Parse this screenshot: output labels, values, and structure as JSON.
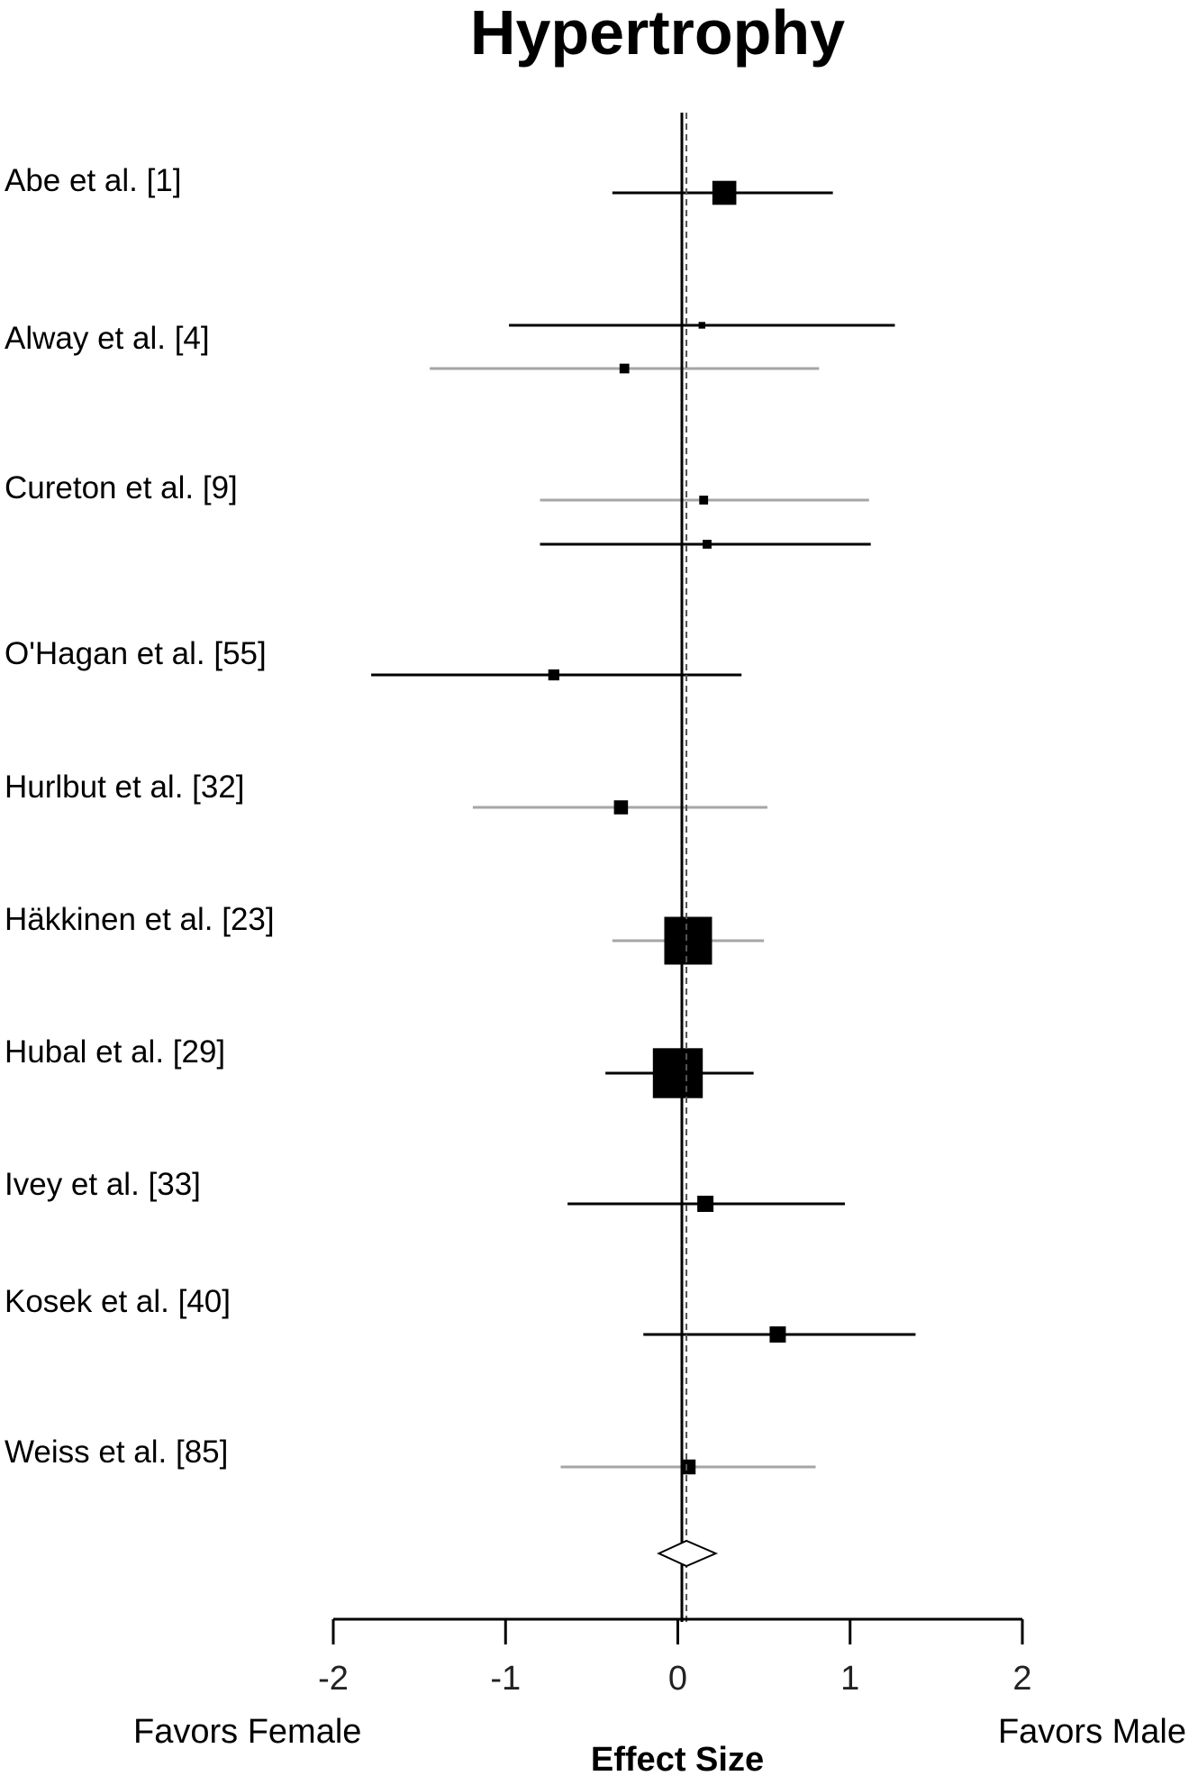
{
  "chart_data": {
    "type": "forest",
    "title": "Hypertrophy",
    "xlabel": "Effect Size",
    "left_annotation": "Favors Female",
    "right_annotation": "Favors Male",
    "xlim": [
      -2,
      2
    ],
    "xticks": [
      "-2",
      "-1",
      "0",
      "1",
      "2"
    ],
    "pooled_reference_line": 0.05,
    "studies": [
      {
        "label": "Abe et al. [1]",
        "rows": [
          {
            "est": 0.27,
            "lo": -0.38,
            "hi": 0.9,
            "weight": 0.45,
            "tone": "black"
          }
        ]
      },
      {
        "label": "Alway et al. [4]",
        "rows": [
          {
            "est": 0.14,
            "lo": -0.98,
            "hi": 1.26,
            "weight": 0.05,
            "tone": "black"
          },
          {
            "est": -0.31,
            "lo": -1.44,
            "hi": 0.82,
            "weight": 0.12,
            "tone": "gray"
          }
        ]
      },
      {
        "label": "Cureton et al. [9]",
        "rows": [
          {
            "est": 0.15,
            "lo": -0.8,
            "hi": 1.11,
            "weight": 0.1,
            "tone": "gray"
          },
          {
            "est": 0.17,
            "lo": -0.8,
            "hi": 1.12,
            "weight": 0.1,
            "tone": "black"
          }
        ]
      },
      {
        "label": "O'Hagan et al. [55]",
        "rows": [
          {
            "est": -0.72,
            "lo": -1.78,
            "hi": 0.37,
            "weight": 0.15,
            "tone": "black"
          }
        ]
      },
      {
        "label": "Hurlbut et al. [32]",
        "rows": [
          {
            "est": -0.33,
            "lo": -1.19,
            "hi": 0.52,
            "weight": 0.22,
            "tone": "gray"
          }
        ]
      },
      {
        "label": "Häkkinen et al. [23]",
        "rows": [
          {
            "est": 0.06,
            "lo": -0.38,
            "hi": 0.5,
            "weight": 1.0,
            "tone": "gray"
          }
        ]
      },
      {
        "label": "Hubal et al. [29]",
        "rows": [
          {
            "est": 0.0,
            "lo": -0.42,
            "hi": 0.44,
            "weight": 1.05,
            "tone": "black"
          }
        ]
      },
      {
        "label": "Ivey et al. [33]",
        "rows": [
          {
            "est": 0.16,
            "lo": -0.64,
            "hi": 0.97,
            "weight": 0.27,
            "tone": "black"
          }
        ]
      },
      {
        "label": "Kosek et al. [40]",
        "rows": [
          {
            "est": 0.58,
            "lo": -0.2,
            "hi": 1.38,
            "weight": 0.27,
            "tone": "black"
          }
        ]
      },
      {
        "label": "Weiss et al. [85]",
        "rows": [
          {
            "est": 0.06,
            "lo": -0.68,
            "hi": 0.8,
            "weight": 0.24,
            "tone": "gray"
          }
        ]
      }
    ],
    "pooled": {
      "est": 0.05,
      "lo": -0.11,
      "hi": 0.22
    },
    "colors": {
      "black": "#000000",
      "gray": "#a6a6a6"
    }
  }
}
